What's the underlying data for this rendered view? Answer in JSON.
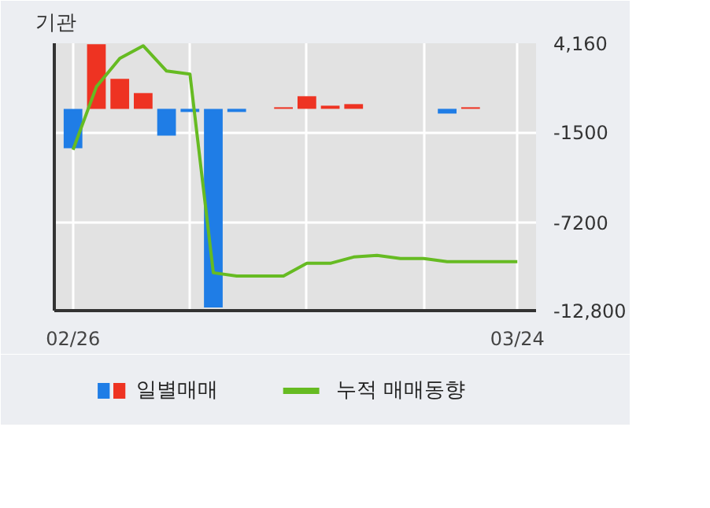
{
  "chart_data": {
    "type": "bar",
    "title": "기관",
    "categories": [
      "02/26",
      null,
      null,
      null,
      null,
      null,
      null,
      null,
      null,
      null,
      null,
      null,
      null,
      null,
      null,
      null,
      null,
      null,
      null,
      "03/24"
    ],
    "series": [
      {
        "name": "일별매매",
        "colors": [
          "#1f7de6",
          "#ee3322",
          "#ee3322",
          "#ee3322",
          "#1f7de6",
          "#1f7de6",
          "#1f7de6",
          "#1f7de6",
          "#ee3322",
          "#ee3322",
          "#ee3322",
          "#ee3322",
          "#ee3322",
          "#ee3322",
          "#ee3322",
          "#ee3322",
          "#1f7de6",
          "#ee3322",
          "#ee3322",
          "#ee3322"
        ],
        "values": [
          -2500,
          4100,
          1900,
          1000,
          -1700,
          -200,
          -12600,
          -200,
          0,
          100,
          800,
          200,
          300,
          0,
          0,
          0,
          -300,
          100,
          0,
          0
        ]
      },
      {
        "type": "line",
        "name": "누적 매매동향",
        "color": "#66bb22",
        "values": [
          -2600,
          1400,
          3200,
          4000,
          2400,
          2200,
          -10400,
          -10600,
          -10600,
          -10600,
          -9800,
          -9800,
          -9400,
          -9300,
          -9500,
          -9500,
          -9700,
          -9700,
          -9700,
          -9700
        ]
      }
    ],
    "ylim": [
      -12800,
      4160
    ],
    "yticks": [
      {
        "value": 4160,
        "label": "4,160"
      },
      -1500,
      -7200,
      {
        "value": -12800,
        "label": "-12,800"
      }
    ],
    "grid": true,
    "legend": "bottom"
  }
}
